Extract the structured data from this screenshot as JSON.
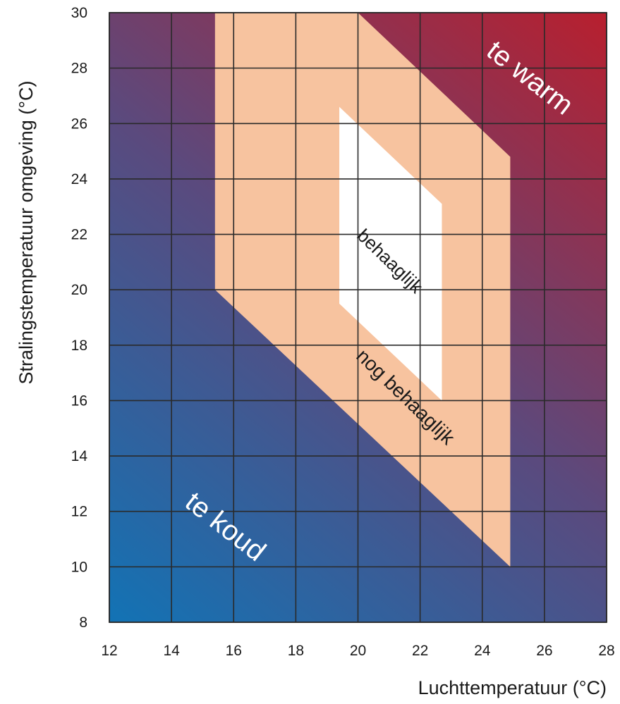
{
  "chart_data": {
    "type": "area",
    "xlabel": "Luchttemperatuur (°C)",
    "ylabel": "Stralingstemperatuur omgeving (°C)",
    "xlim": [
      12,
      28
    ],
    "ylim": [
      8,
      30
    ],
    "xticks": [
      12,
      14,
      16,
      18,
      20,
      22,
      24,
      26,
      28
    ],
    "yticks": [
      8,
      10,
      12,
      14,
      16,
      18,
      20,
      22,
      24,
      26,
      28,
      30
    ],
    "grid": true,
    "colors": {
      "cold": "#1273b5",
      "mid": "#5a4a7e",
      "warm": "#b81f2e",
      "acceptable_fill": "#f7c39f",
      "comfortable_fill": "#ffffff",
      "grid": "#2a2a2a"
    },
    "zones": [
      {
        "name": "nog behaaglijk",
        "label": "nog behaaglijk",
        "points": [
          [
            15.4,
            30
          ],
          [
            20,
            30
          ],
          [
            24.9,
            24.8
          ],
          [
            24.9,
            10
          ],
          [
            15.4,
            20
          ]
        ]
      },
      {
        "name": "behaaglijk",
        "label": "behaaglijk",
        "points": [
          [
            19.4,
            26.6
          ],
          [
            22.7,
            23.1
          ],
          [
            22.7,
            16
          ],
          [
            19.4,
            19.5
          ]
        ]
      }
    ],
    "annotations": [
      {
        "text": "te warm",
        "x": 25.5,
        "y": 27.6,
        "rotation": 38,
        "color": "#ffffff",
        "size": 40
      },
      {
        "text": "te koud",
        "x": 15.7,
        "y": 11.4,
        "rotation": 38,
        "color": "#ffffff",
        "size": 40
      },
      {
        "text": "behaaglijk",
        "x": 21.0,
        "y": 21.0,
        "rotation": 44,
        "color": "#1a1a1a",
        "size": 26
      },
      {
        "text": "nog behaaglijk",
        "x": 21.5,
        "y": 16.1,
        "rotation": 44,
        "color": "#1a1a1a",
        "size": 28
      }
    ]
  }
}
